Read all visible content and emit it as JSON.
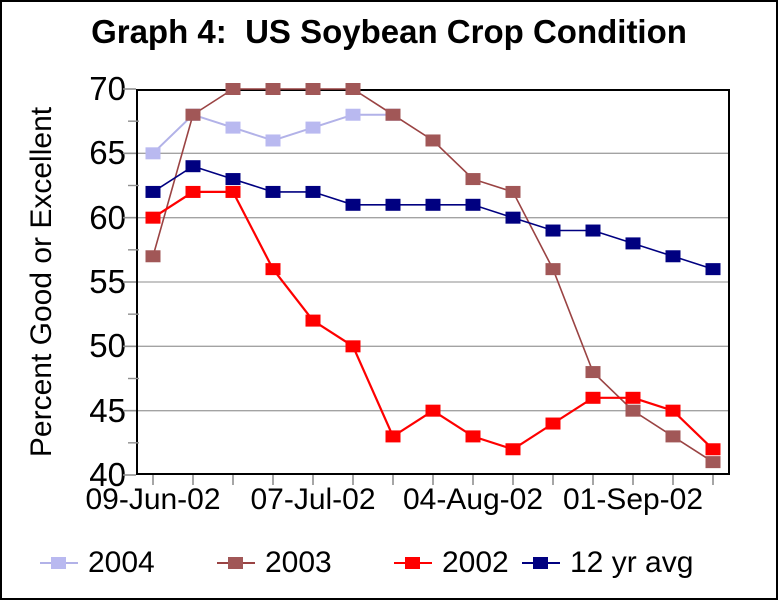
{
  "chart_data": {
    "type": "line",
    "title": "Graph 4:  US Soybean Crop Condition",
    "ylabel": "Percent Good or Excellent",
    "xlabel": "",
    "ylim": [
      40,
      70
    ],
    "y_major": 5,
    "y_minor": 2.5,
    "y_tick_labels": [
      70,
      65,
      60,
      55,
      50,
      45,
      40
    ],
    "grid": "horizontal-major",
    "n_points": 15,
    "x_tick_labels": [
      {
        "index": 0,
        "label": "09-Jun-02"
      },
      {
        "index": 4,
        "label": "07-Jul-02"
      },
      {
        "index": 8,
        "label": "04-Aug-02"
      },
      {
        "index": 12,
        "label": "01-Sep-02"
      }
    ],
    "legend_position": "bottom",
    "grid_color": "#a3a3a3",
    "axis_color": "#000000",
    "tick_color": "#909090",
    "series": [
      {
        "name": "2004",
        "line_color": "#b2b2e8",
        "marker_color": "#b9b9f0",
        "line_width": 2,
        "values": [
          65,
          68,
          67,
          66,
          67,
          68,
          68
        ]
      },
      {
        "name": "2003",
        "line_color": "#9a4343",
        "marker_color": "#a15757",
        "line_width": 1.6,
        "values": [
          57,
          68,
          70,
          70,
          70,
          70,
          68,
          66,
          63,
          62,
          56,
          48,
          45,
          43,
          41
        ]
      },
      {
        "name": "2002",
        "line_color": "#fe0000",
        "marker_color": "#fe0000",
        "line_width": 2.2,
        "values": [
          60,
          62,
          62,
          56,
          52,
          50,
          43,
          45,
          43,
          42,
          44,
          46,
          46,
          45,
          42
        ]
      },
      {
        "name": "12 yr avg",
        "line_color": "#000080",
        "marker_color": "#000080",
        "line_width": 1.6,
        "values": [
          62,
          64,
          63,
          62,
          62,
          61,
          61,
          61,
          61,
          60,
          59,
          59,
          58,
          57,
          56
        ]
      }
    ]
  }
}
